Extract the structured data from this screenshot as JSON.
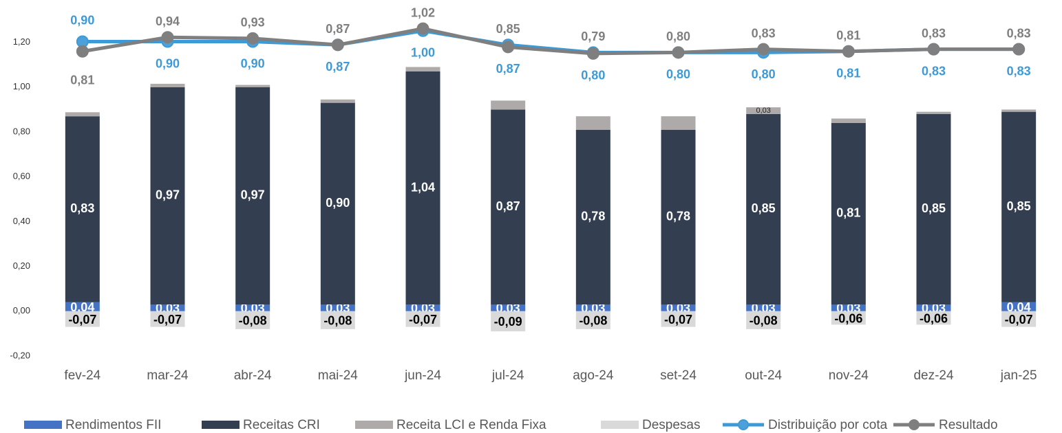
{
  "chart_data": {
    "type": "bar",
    "categories": [
      "fev-24",
      "mar-24",
      "abr-24",
      "mai-24",
      "jun-24",
      "jul-24",
      "ago-24",
      "set-24",
      "out-24",
      "nov-24",
      "dez-24",
      "jan-25"
    ],
    "ylim": [
      -0.2,
      1.3
    ],
    "yticks": [
      {
        "value": -0.2,
        "label": "-0,20"
      },
      {
        "value": 0,
        "label": "0,00"
      },
      {
        "value": 0.2,
        "label": "0,20"
      },
      {
        "value": 0.4,
        "label": "0,40"
      },
      {
        "value": 0.6,
        "label": "0,60"
      },
      {
        "value": 0.8,
        "label": "0,80"
      },
      {
        "value": 1.0,
        "label": "1,00"
      },
      {
        "value": 1.2,
        "label": "1,20"
      }
    ],
    "y2lim": [
      -2.0,
      1.1
    ],
    "series": [
      {
        "name": "Rendimentos FII",
        "color": "#4472c4",
        "values": [
          0.04,
          0.03,
          0.03,
          0.03,
          0.03,
          0.03,
          0.03,
          0.03,
          0.03,
          0.03,
          0.03,
          0.04
        ],
        "value_labels": [
          "0,04",
          "0,03",
          "0,03",
          "0,03",
          "0,03",
          "0,03",
          "0,03",
          "0,03",
          "0,03",
          "0,03",
          "0,03",
          "0,04"
        ]
      },
      {
        "name": "Receitas CRI",
        "color": "#333f50",
        "values": [
          0.83,
          0.97,
          0.97,
          0.9,
          1.04,
          0.87,
          0.78,
          0.78,
          0.85,
          0.81,
          0.85,
          0.85
        ],
        "value_labels": [
          "0,83",
          "0,97",
          "0,97",
          "0,90",
          "1,04",
          "0,87",
          "0,78",
          "0,78",
          "0,85",
          "0,81",
          "0,85",
          "0,85"
        ]
      },
      {
        "name": "Receita LCI e Renda Fixa",
        "color": "#aeaaaa",
        "values": [
          0.018,
          0.015,
          0.01,
          0.015,
          0.02,
          0.04,
          0.06,
          0.06,
          0.03,
          0.02,
          0.01,
          0.01
        ],
        "value_labels": [
          null,
          null,
          null,
          null,
          null,
          null,
          null,
          null,
          "0,03",
          null,
          null,
          null
        ]
      },
      {
        "name": "Despesas",
        "color": "#d9d9d9",
        "values": [
          -0.07,
          -0.07,
          -0.08,
          -0.08,
          -0.07,
          -0.09,
          -0.08,
          -0.07,
          -0.08,
          -0.06,
          -0.06,
          -0.07
        ],
        "value_labels": [
          "-0,07",
          "-0,07",
          "-0,08",
          "-0,08",
          "-0,07",
          "-0,09",
          "-0,08",
          "-0,07",
          "-0,08",
          "-0,06",
          "-0,06",
          "-0,07"
        ]
      },
      {
        "name": "Distribuição por cota",
        "color": "#3d9ad6",
        "type": "line",
        "axis": "y2",
        "values": [
          0.9,
          0.9,
          0.9,
          0.87,
          1.0,
          0.87,
          0.8,
          0.8,
          0.8,
          0.81,
          0.83,
          0.83
        ],
        "value_labels": [
          "0,90",
          "0,90",
          "0,90",
          "0,87",
          "1,00",
          "0,87",
          "0,80",
          "0,80",
          "0,80",
          "0,81",
          "0,83",
          "0,83"
        ]
      },
      {
        "name": "Resultado",
        "color": "#7f7f7f",
        "type": "line",
        "axis": "y2",
        "values": [
          0.81,
          0.94,
          0.93,
          0.87,
          1.02,
          0.85,
          0.79,
          0.8,
          0.83,
          0.81,
          0.83,
          0.83
        ],
        "value_labels": [
          "0,81",
          "0,94",
          "0,93",
          "0,87",
          "1,02",
          "0,85",
          "0,79",
          "0,80",
          "0,83",
          "0,81",
          "0,83",
          "0,83"
        ]
      }
    ]
  }
}
